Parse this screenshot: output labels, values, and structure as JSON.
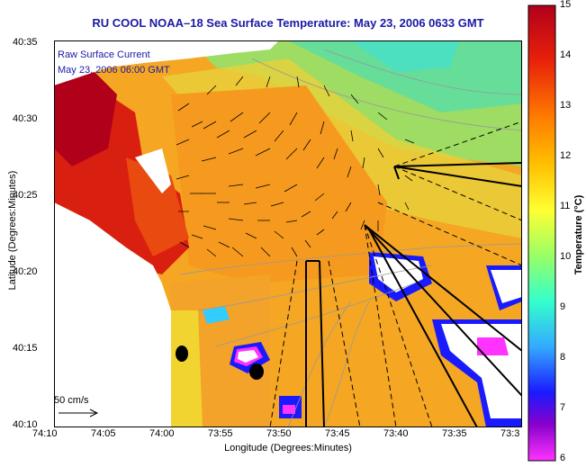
{
  "title": "RU COOL  NOAA–18  Sea Surface Temperature:  May 23, 2006 0633 GMT",
  "overlay": {
    "line1": "Raw Surface Current",
    "line2": "May 23, 2006 06:00 GMT"
  },
  "axes": {
    "xlabel": "Longitude (Degrees:Minutes)",
    "ylabel": "Latitude (Degrees:Minutes)",
    "yticks": [
      "40:35",
      "40:30",
      "40:25",
      "40:20",
      "40:15",
      "40:10"
    ],
    "xticks": [
      "74:10",
      "74:05",
      "74:00",
      "73:55",
      "73:50",
      "73:45",
      "73:40",
      "73:35",
      "73:3"
    ]
  },
  "colorbar": {
    "label": "Temperature (°C)",
    "ticks": [
      "15",
      "14",
      "13",
      "12",
      "11",
      "10",
      "9",
      "8",
      "7",
      "6"
    ],
    "colors": {
      "max": "#b0001a",
      "high": "#ff7f00",
      "mid": "#ffff33",
      "cool": "#33ffcc",
      "cold": "#1a1aff",
      "min": "#ff33ff"
    }
  },
  "legend": {
    "scale_label": "50 cm/s"
  }
}
